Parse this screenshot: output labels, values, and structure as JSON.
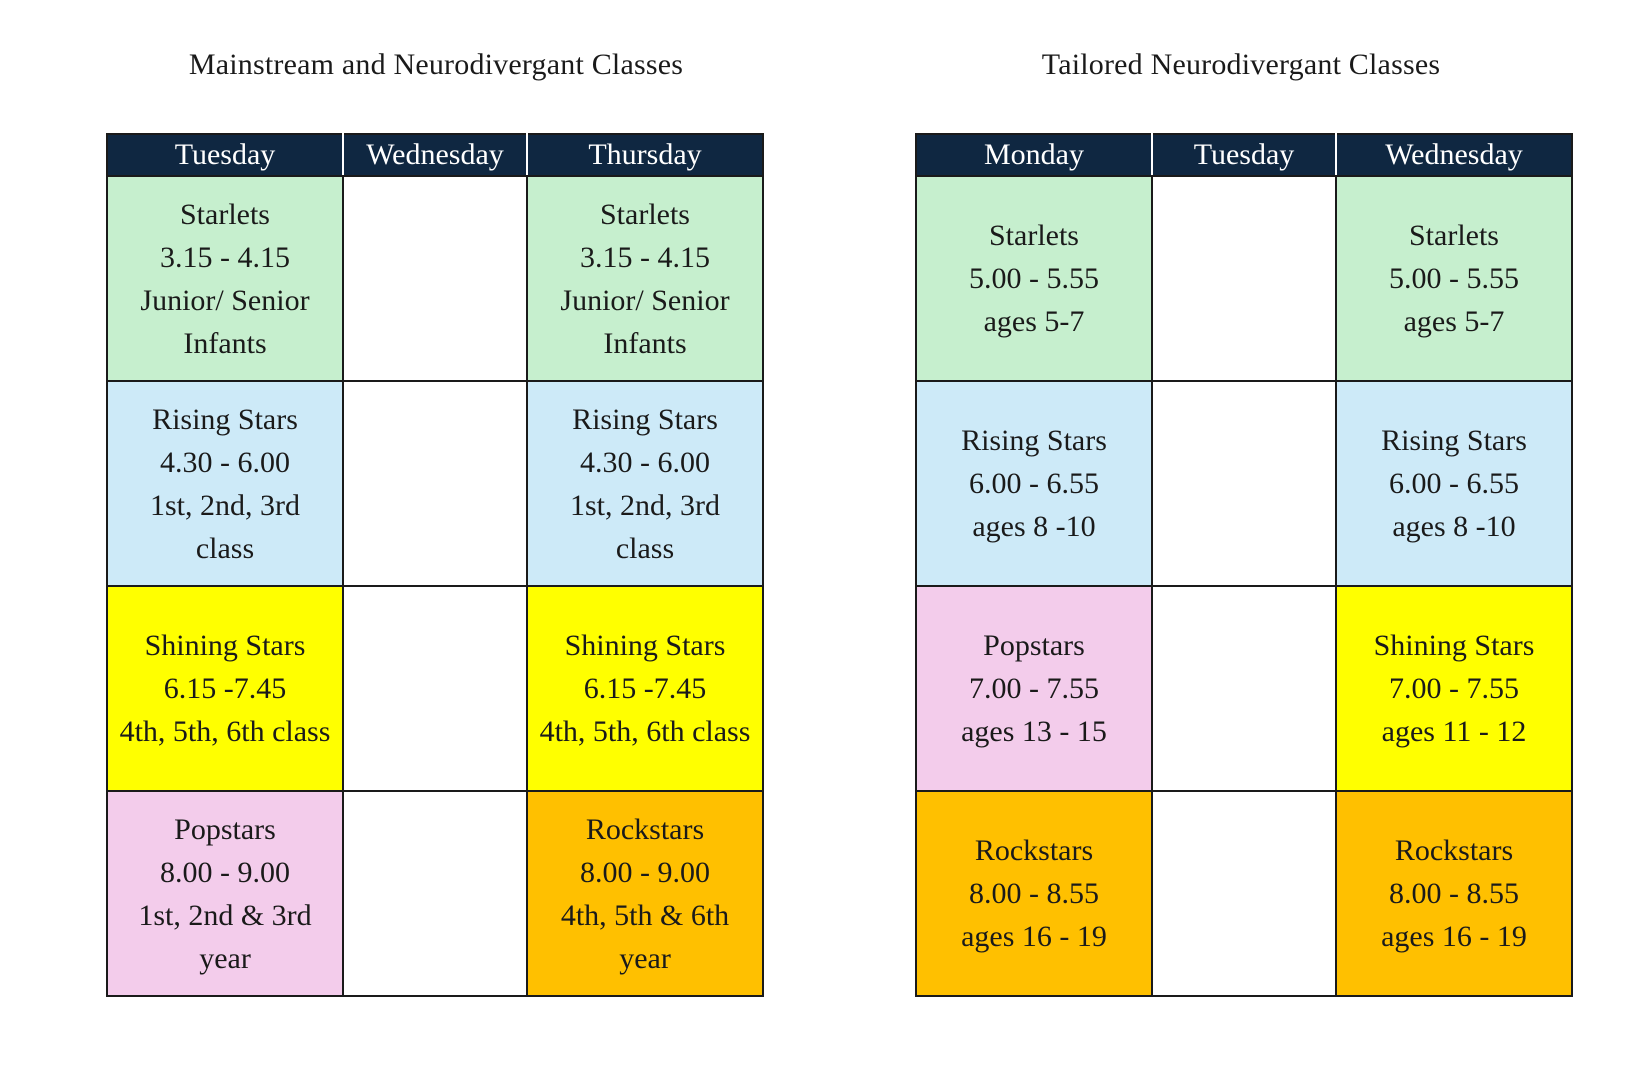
{
  "colors": {
    "green": "#c6efce",
    "blue": "#cdeaf8",
    "yellow": "#ffff00",
    "pink": "#f3cceb",
    "orange": "#ffc000",
    "white": "#ffffff",
    "header": "#0f2741"
  },
  "tables": [
    {
      "title": "Mainstream and Neurodivergant Classes",
      "headers": [
        "Tuesday",
        "Wednesday",
        "Thursday"
      ],
      "rows": [
        [
          {
            "color": "green",
            "lines": [
              "Starlets",
              "3.15 - 4.15",
              "Junior/ Senior",
              "Infants"
            ]
          },
          {
            "color": "white",
            "lines": []
          },
          {
            "color": "green",
            "lines": [
              "Starlets",
              "3.15 - 4.15",
              "Junior/ Senior",
              "Infants"
            ]
          }
        ],
        [
          {
            "color": "blue",
            "lines": [
              "Rising Stars",
              "4.30 - 6.00",
              "1st, 2nd, 3rd",
              "class"
            ]
          },
          {
            "color": "white",
            "lines": []
          },
          {
            "color": "blue",
            "lines": [
              "Rising Stars",
              "4.30 - 6.00",
              "1st, 2nd, 3rd",
              "class"
            ]
          }
        ],
        [
          {
            "color": "yellow",
            "lines": [
              "Shining Stars",
              "6.15 -7.45",
              "4th, 5th, 6th class"
            ]
          },
          {
            "color": "white",
            "lines": []
          },
          {
            "color": "yellow",
            "lines": [
              "Shining Stars",
              "6.15 -7.45",
              "4th, 5th, 6th class"
            ]
          }
        ],
        [
          {
            "color": "pink",
            "lines": [
              "Popstars",
              "8.00 - 9.00",
              "1st, 2nd & 3rd",
              "year"
            ]
          },
          {
            "color": "white",
            "lines": []
          },
          {
            "color": "orange",
            "lines": [
              "Rockstars",
              "8.00 - 9.00",
              "4th, 5th & 6th",
              "year"
            ]
          }
        ]
      ]
    },
    {
      "title": "Tailored Neurodivergant Classes",
      "headers": [
        "Monday",
        "Tuesday",
        "Wednesday"
      ],
      "rows": [
        [
          {
            "color": "green",
            "lines": [
              "Starlets",
              "5.00 - 5.55",
              "ages 5-7"
            ]
          },
          {
            "color": "white",
            "lines": []
          },
          {
            "color": "green",
            "lines": [
              "Starlets",
              "5.00 - 5.55",
              "ages 5-7"
            ]
          }
        ],
        [
          {
            "color": "blue",
            "lines": [
              "Rising Stars",
              "6.00 - 6.55",
              "ages 8 -10"
            ]
          },
          {
            "color": "white",
            "lines": []
          },
          {
            "color": "blue",
            "lines": [
              "Rising Stars",
              "6.00 - 6.55",
              "ages 8 -10"
            ]
          }
        ],
        [
          {
            "color": "pink",
            "lines": [
              "Popstars",
              "7.00 - 7.55",
              "ages 13 - 15"
            ]
          },
          {
            "color": "white",
            "lines": []
          },
          {
            "color": "yellow",
            "lines": [
              "Shining Stars",
              "7.00 - 7.55",
              "ages 11 - 12"
            ]
          }
        ],
        [
          {
            "color": "orange",
            "lines": [
              "Rockstars",
              "8.00 - 8.55",
              "ages 16 - 19"
            ]
          },
          {
            "color": "white",
            "lines": []
          },
          {
            "color": "orange",
            "lines": [
              "Rockstars",
              "8.00 - 8.55",
              "ages 16 - 19"
            ]
          }
        ]
      ]
    }
  ]
}
